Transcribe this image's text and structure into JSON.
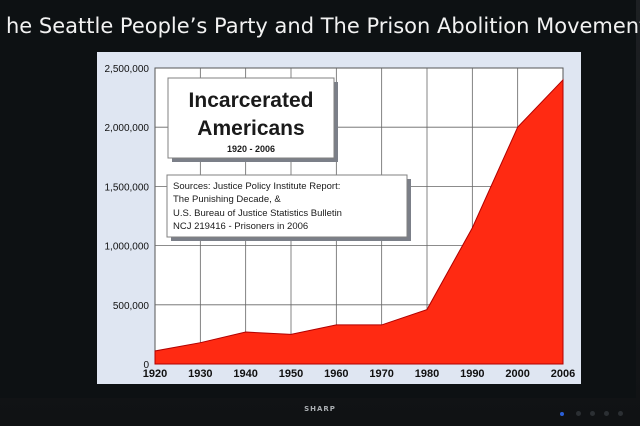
{
  "slide": {
    "title": "he Seattle People’s Party and The Prison Abolition Movement"
  },
  "monitor": {
    "brand": "SHARP"
  },
  "chart_data": {
    "type": "area",
    "title": "Incarcerated Americans",
    "subtitle": "1920 - 2006",
    "sources": [
      "Sources: Justice Policy Institute Report:",
      "The Punishing Decade, &",
      "U.S. Bureau of Justice Statistics Bulletin",
      "NCJ 219416 - Prisoners in 2006"
    ],
    "xlabel": "",
    "ylabel": "",
    "x_ticks": [
      "1920",
      "1930",
      "1940",
      "1950",
      "1960",
      "1970",
      "1980",
      "1990",
      "2000",
      "2006"
    ],
    "y_ticks": [
      "0",
      "500,000",
      "1,000,000",
      "1,500,000",
      "2,000,000",
      "2,500,000"
    ],
    "y_tick_values": [
      0,
      500000,
      1000000,
      1500000,
      2000000,
      2500000
    ],
    "ylim": [
      0,
      2500000
    ],
    "grid": true,
    "fill_color": "#ff2a12",
    "series": [
      {
        "name": "Incarcerated Americans",
        "x": [
          1920,
          1930,
          1940,
          1950,
          1960,
          1970,
          1980,
          1990,
          2000,
          2006
        ],
        "values": [
          110000,
          180000,
          270000,
          250000,
          330000,
          330000,
          460000,
          1150000,
          2000000,
          2400000
        ]
      }
    ]
  }
}
